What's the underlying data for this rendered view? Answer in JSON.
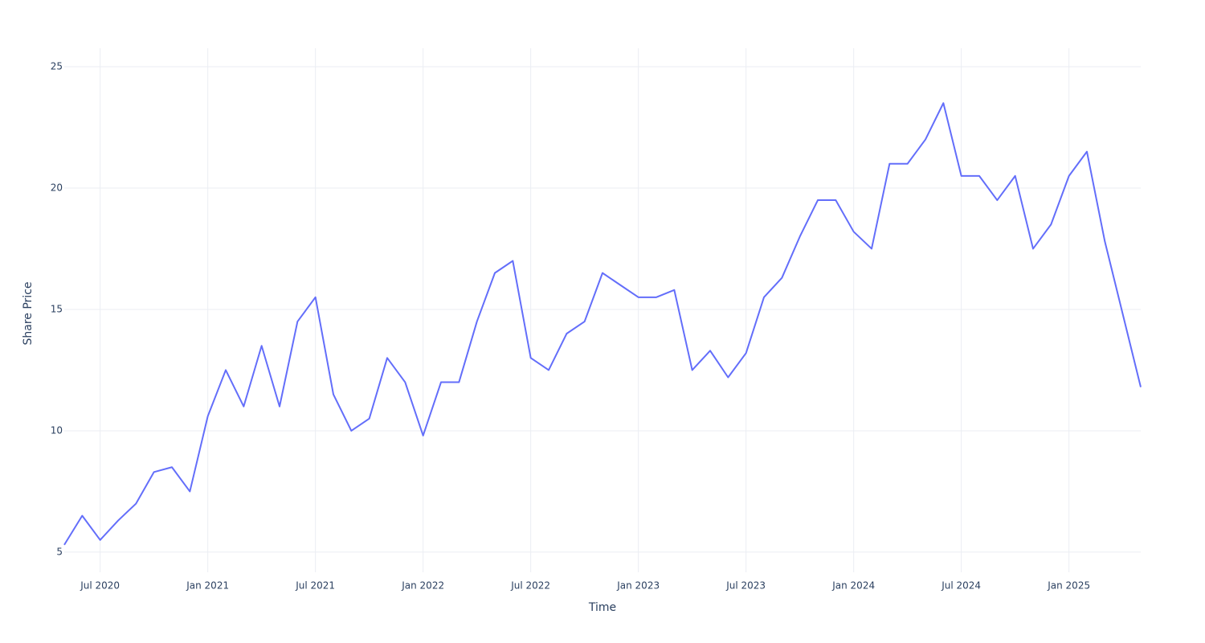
{
  "chart_data": {
    "type": "line",
    "x_title": "Time",
    "y_title": "Share Price",
    "x": [
      "2020-05",
      "2020-06",
      "2020-07",
      "2020-08",
      "2020-09",
      "2020-10",
      "2020-11",
      "2020-12",
      "2021-01",
      "2021-02",
      "2021-03",
      "2021-04",
      "2021-05",
      "2021-06",
      "2021-07",
      "2021-08",
      "2021-09",
      "2021-10",
      "2021-11",
      "2021-12",
      "2022-01",
      "2022-02",
      "2022-03",
      "2022-04",
      "2022-05",
      "2022-06",
      "2022-07",
      "2022-08",
      "2022-09",
      "2022-10",
      "2022-11",
      "2022-12",
      "2023-01",
      "2023-02",
      "2023-03",
      "2023-04",
      "2023-05",
      "2023-06",
      "2023-07",
      "2023-08",
      "2023-09",
      "2023-10",
      "2023-11",
      "2023-12",
      "2024-01",
      "2024-02",
      "2024-03",
      "2024-04",
      "2024-05",
      "2024-06",
      "2024-07",
      "2024-08",
      "2024-09",
      "2024-10",
      "2024-11",
      "2024-12",
      "2025-01",
      "2025-02",
      "2025-03",
      "2025-04",
      "2025-05"
    ],
    "series": [
      {
        "color": "#636efa",
        "values": [
          5.3,
          6.5,
          5.5,
          6.3,
          7.0,
          8.3,
          8.5,
          7.5,
          10.6,
          12.5,
          11.0,
          13.5,
          11.0,
          14.5,
          15.5,
          11.5,
          10.0,
          10.5,
          13.0,
          12.0,
          9.8,
          12.0,
          12.0,
          14.5,
          16.5,
          17.0,
          13.0,
          12.5,
          14.0,
          14.5,
          16.5,
          16.0,
          15.5,
          15.5,
          15.8,
          12.5,
          13.3,
          12.2,
          13.2,
          15.5,
          16.3,
          18.0,
          19.5,
          19.5,
          18.2,
          17.5,
          21.0,
          21.0,
          22.0,
          23.5,
          20.5,
          20.5,
          19.5,
          20.5,
          17.5,
          18.5,
          20.5,
          21.5,
          17.8,
          14.8,
          11.8
        ]
      }
    ],
    "xlim": [
      "2020-05",
      "2025-05"
    ],
    "xticks": [
      {
        "value": "2020-07",
        "label": "Jul 2020"
      },
      {
        "value": "2021-01",
        "label": "Jan 2021"
      },
      {
        "value": "2021-07",
        "label": "Jul 2021"
      },
      {
        "value": "2022-01",
        "label": "Jan 2022"
      },
      {
        "value": "2022-07",
        "label": "Jul 2022"
      },
      {
        "value": "2023-01",
        "label": "Jan 2023"
      },
      {
        "value": "2023-07",
        "label": "Jul 2023"
      },
      {
        "value": "2024-01",
        "label": "Jan 2024"
      },
      {
        "value": "2024-07",
        "label": "Jul 2024"
      },
      {
        "value": "2025-01",
        "label": "Jan 2025"
      }
    ],
    "ylim": [
      4.17,
      25.76
    ],
    "yticks": [
      5,
      10,
      15,
      20,
      25
    ],
    "grid": true
  }
}
